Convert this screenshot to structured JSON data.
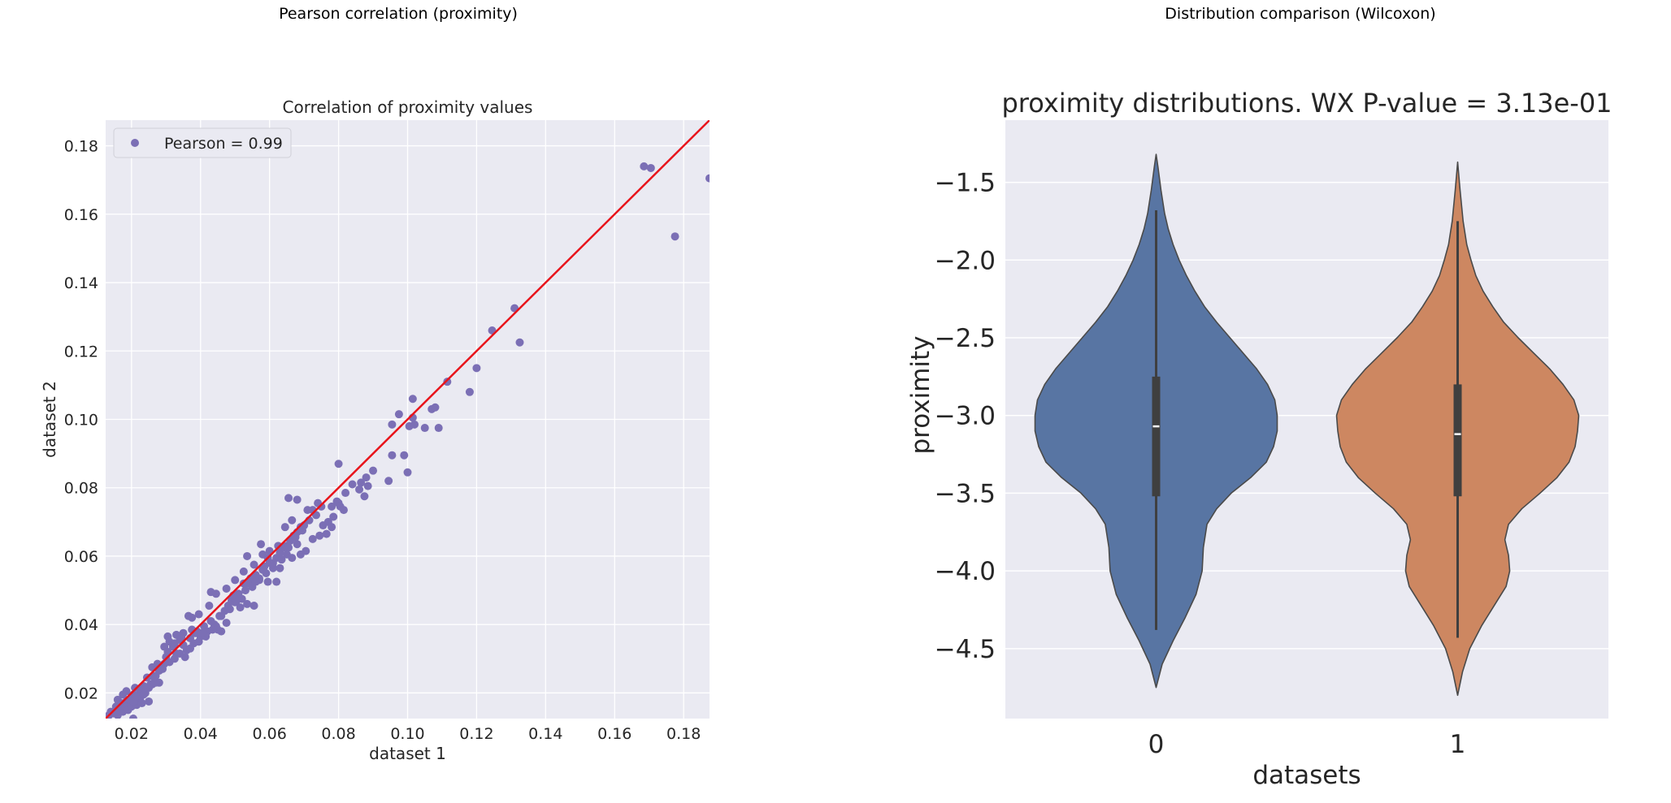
{
  "panels": {
    "left_title": "Pearson correlation (proximity)",
    "right_title": "Distribution comparison (Wilcoxon)"
  },
  "chart_data": [
    {
      "type": "scatter",
      "title": "Correlation of proximity values",
      "xlabel": "dataset 1",
      "ylabel": "dataset 2",
      "xlim": [
        0.0125,
        0.1875
      ],
      "ylim": [
        0.0125,
        0.1875
      ],
      "xticks": [
        "0.02",
        "0.04",
        "0.06",
        "0.08",
        "0.10",
        "0.12",
        "0.14",
        "0.16",
        "0.18"
      ],
      "yticks": [
        "0.02",
        "0.04",
        "0.06",
        "0.08",
        "0.10",
        "0.12",
        "0.14",
        "0.16",
        "0.18"
      ],
      "legend": {
        "label": "Pearson = 0.99",
        "placement": "top-left"
      },
      "grid": true,
      "colors": {
        "points": "#7b6fb5",
        "fit_line": "#e8141b",
        "background": "#eaeaf2",
        "grid": "#ffffff"
      },
      "fit_line": {
        "x": [
          0.0125,
          0.1875
        ],
        "y": [
          0.0125,
          0.1875
        ]
      },
      "points": [
        [
          0.0135,
          0.0135
        ],
        [
          0.014,
          0.0145
        ],
        [
          0.015,
          0.014
        ],
        [
          0.0155,
          0.016
        ],
        [
          0.016,
          0.0135
        ],
        [
          0.0165,
          0.0155
        ],
        [
          0.017,
          0.017
        ],
        [
          0.0175,
          0.0145
        ],
        [
          0.018,
          0.016
        ],
        [
          0.0185,
          0.0175
        ],
        [
          0.019,
          0.015
        ],
        [
          0.0195,
          0.018
        ],
        [
          0.02,
          0.016
        ],
        [
          0.0205,
          0.0195
        ],
        [
          0.021,
          0.0175
        ],
        [
          0.0215,
          0.0165
        ],
        [
          0.022,
          0.019
        ],
        [
          0.0225,
          0.0185
        ],
        [
          0.023,
          0.021
        ],
        [
          0.024,
          0.02
        ],
        [
          0.025,
          0.0215
        ],
        [
          0.026,
          0.0225
        ],
        [
          0.027,
          0.025
        ],
        [
          0.028,
          0.023
        ],
        [
          0.0185,
          0.0205
        ],
        [
          0.021,
          0.0215
        ],
        [
          0.016,
          0.018
        ],
        [
          0.0175,
          0.0195
        ],
        [
          0.0205,
          0.0125
        ],
        [
          0.023,
          0.017
        ],
        [
          0.025,
          0.0175
        ],
        [
          0.0245,
          0.0245
        ],
        [
          0.026,
          0.0275
        ],
        [
          0.0275,
          0.0285
        ],
        [
          0.029,
          0.027
        ],
        [
          0.03,
          0.0305
        ],
        [
          0.031,
          0.029
        ],
        [
          0.0305,
          0.0365
        ],
        [
          0.032,
          0.0335
        ],
        [
          0.033,
          0.0315
        ],
        [
          0.034,
          0.0355
        ],
        [
          0.035,
          0.034
        ],
        [
          0.036,
          0.0325
        ],
        [
          0.037,
          0.036
        ],
        [
          0.038,
          0.0345
        ],
        [
          0.0385,
          0.0375
        ],
        [
          0.039,
          0.038
        ],
        [
          0.04,
          0.0365
        ],
        [
          0.041,
          0.0395
        ],
        [
          0.042,
          0.038
        ],
        [
          0.043,
          0.041
        ],
        [
          0.044,
          0.04
        ],
        [
          0.045,
          0.0385
        ],
        [
          0.046,
          0.0425
        ],
        [
          0.047,
          0.044
        ],
        [
          0.048,
          0.0455
        ],
        [
          0.049,
          0.047
        ],
        [
          0.05,
          0.0465
        ],
        [
          0.051,
          0.049
        ],
        [
          0.052,
          0.0475
        ],
        [
          0.053,
          0.05
        ],
        [
          0.054,
          0.052
        ],
        [
          0.055,
          0.051
        ],
        [
          0.056,
          0.0545
        ],
        [
          0.057,
          0.053
        ],
        [
          0.058,
          0.056
        ],
        [
          0.059,
          0.055
        ],
        [
          0.06,
          0.058
        ],
        [
          0.061,
          0.0565
        ],
        [
          0.062,
          0.0595
        ],
        [
          0.063,
          0.061
        ],
        [
          0.064,
          0.0625
        ],
        [
          0.065,
          0.063
        ],
        [
          0.066,
          0.0645
        ],
        [
          0.067,
          0.066
        ],
        [
          0.068,
          0.067
        ],
        [
          0.069,
          0.0685
        ],
        [
          0.07,
          0.069
        ],
        [
          0.0715,
          0.0705
        ],
        [
          0.0735,
          0.072
        ],
        [
          0.075,
          0.0745
        ],
        [
          0.077,
          0.07
        ],
        [
          0.078,
          0.0745
        ],
        [
          0.0795,
          0.076
        ],
        [
          0.08,
          0.0755
        ],
        [
          0.0805,
          0.0745
        ],
        [
          0.082,
          0.0785
        ],
        [
          0.084,
          0.081
        ],
        [
          0.086,
          0.0795
        ],
        [
          0.088,
          0.083
        ],
        [
          0.0875,
          0.0775
        ],
        [
          0.09,
          0.085
        ],
        [
          0.08,
          0.087
        ],
        [
          0.068,
          0.0765
        ],
        [
          0.0655,
          0.077
        ],
        [
          0.074,
          0.0755
        ],
        [
          0.0945,
          0.082
        ],
        [
          0.0955,
          0.0895
        ],
        [
          0.099,
          0.0895
        ],
        [
          0.1,
          0.0845
        ],
        [
          0.1005,
          0.098
        ],
        [
          0.102,
          0.0985
        ],
        [
          0.105,
          0.0975
        ],
        [
          0.107,
          0.103
        ],
        [
          0.108,
          0.1035
        ],
        [
          0.109,
          0.0975
        ],
        [
          0.0955,
          0.0985
        ],
        [
          0.0975,
          0.1015
        ],
        [
          0.1015,
          0.106
        ],
        [
          0.1015,
          0.1005
        ],
        [
          0.1115,
          0.111
        ],
        [
          0.118,
          0.108
        ],
        [
          0.12,
          0.115
        ],
        [
          0.1245,
          0.126
        ],
        [
          0.131,
          0.1325
        ],
        [
          0.1325,
          0.1225
        ],
        [
          0.1685,
          0.174
        ],
        [
          0.1705,
          0.1735
        ],
        [
          0.1775,
          0.1535
        ],
        [
          0.1875,
          0.1705
        ],
        [
          0.0295,
          0.0335
        ],
        [
          0.031,
          0.035
        ],
        [
          0.033,
          0.037
        ],
        [
          0.035,
          0.0375
        ],
        [
          0.0365,
          0.0425
        ],
        [
          0.0375,
          0.042
        ],
        [
          0.0395,
          0.043
        ],
        [
          0.0425,
          0.0455
        ],
        [
          0.043,
          0.0495
        ],
        [
          0.0445,
          0.049
        ],
        [
          0.0475,
          0.0505
        ],
        [
          0.05,
          0.053
        ],
        [
          0.0525,
          0.0555
        ],
        [
          0.0535,
          0.06
        ],
        [
          0.0555,
          0.0575
        ],
        [
          0.058,
          0.0605
        ],
        [
          0.06,
          0.0615
        ],
        [
          0.0625,
          0.063
        ],
        [
          0.0645,
          0.0685
        ],
        [
          0.0665,
          0.0705
        ],
        [
          0.071,
          0.0735
        ],
        [
          0.0725,
          0.0735
        ],
        [
          0.0575,
          0.0635
        ],
        [
          0.0595,
          0.0595
        ],
        [
          0.0515,
          0.045
        ],
        [
          0.0535,
          0.046
        ],
        [
          0.0555,
          0.0455
        ],
        [
          0.0475,
          0.0405
        ],
        [
          0.046,
          0.038
        ],
        [
          0.0445,
          0.0395
        ],
        [
          0.0415,
          0.0365
        ],
        [
          0.0395,
          0.035
        ],
        [
          0.037,
          0.033
        ],
        [
          0.0355,
          0.0305
        ],
        [
          0.034,
          0.0315
        ],
        [
          0.0325,
          0.03
        ],
        [
          0.0295,
          0.0285
        ],
        [
          0.028,
          0.0265
        ],
        [
          0.027,
          0.023
        ],
        [
          0.0255,
          0.0225
        ],
        [
          0.0235,
          0.022
        ],
        [
          0.0225,
          0.0205
        ],
        [
          0.062,
          0.0525
        ],
        [
          0.0595,
          0.0525
        ],
        [
          0.057,
          0.0535
        ],
        [
          0.063,
          0.0565
        ],
        [
          0.065,
          0.0605
        ],
        [
          0.0665,
          0.0595
        ],
        [
          0.069,
          0.0605
        ],
        [
          0.0705,
          0.0615
        ],
        [
          0.068,
          0.0635
        ],
        [
          0.0725,
          0.065
        ],
        [
          0.0745,
          0.066
        ],
        [
          0.0765,
          0.0665
        ],
        [
          0.078,
          0.0685
        ],
        [
          0.0755,
          0.069
        ],
        [
          0.0815,
          0.0735
        ],
        [
          0.0785,
          0.0715
        ],
        [
          0.0865,
          0.0815
        ],
        [
          0.0885,
          0.0805
        ],
        [
          0.0205,
          0.0175
        ],
        [
          0.0215,
          0.019
        ],
        [
          0.0235,
          0.0195
        ],
        [
          0.0265,
          0.0245
        ],
        [
          0.0285,
          0.027
        ],
        [
          0.0305,
          0.032
        ],
        [
          0.0325,
          0.0345
        ],
        [
          0.0345,
          0.036
        ],
        [
          0.0375,
          0.0385
        ],
        [
          0.0405,
          0.0375
        ],
        [
          0.0435,
          0.0385
        ],
        [
          0.0455,
          0.0425
        ],
        [
          0.0485,
          0.0445
        ],
        [
          0.0505,
          0.047
        ],
        [
          0.0495,
          0.0485
        ],
        [
          0.0525,
          0.052
        ],
        [
          0.0545,
          0.0535
        ],
        [
          0.056,
          0.0525
        ],
        [
          0.0585,
          0.057
        ],
        [
          0.061,
          0.058
        ],
        [
          0.0635,
          0.059
        ],
        [
          0.0655,
          0.0625
        ],
        [
          0.0675,
          0.0655
        ],
        [
          0.0695,
          0.0675
        ]
      ]
    },
    {
      "type": "violin",
      "title": "proximity distributions. WX P-value = 3.13e-01",
      "xlabel": "datasets",
      "ylabel": "proximity",
      "categories": [
        "0",
        "1"
      ],
      "ylim": [
        -4.95,
        -1.1
      ],
      "yticks": [
        "−1.5",
        "−2.0",
        "−2.5",
        "−3.0",
        "−3.5",
        "−4.0",
        "−4.5"
      ],
      "grid": true,
      "colors": {
        "violin_0": "#5875a3",
        "violin_1": "#cd8761",
        "background": "#eaeaf2",
        "box": "#3f3f3f"
      },
      "series": [
        {
          "category": "0",
          "min": -4.75,
          "max": -1.32,
          "whisker_low": -4.38,
          "whisker_high": -1.68,
          "q1": -3.52,
          "median": -3.07,
          "q3": -2.75,
          "density": [
            [
              -4.75,
              0.0
            ],
            [
              -4.6,
              0.05
            ],
            [
              -4.45,
              0.14
            ],
            [
              -4.3,
              0.24
            ],
            [
              -4.15,
              0.33
            ],
            [
              -4.0,
              0.38
            ],
            [
              -3.85,
              0.39
            ],
            [
              -3.7,
              0.42
            ],
            [
              -3.6,
              0.5
            ],
            [
              -3.5,
              0.62
            ],
            [
              -3.4,
              0.78
            ],
            [
              -3.3,
              0.91
            ],
            [
              -3.2,
              0.97
            ],
            [
              -3.1,
              1.0
            ],
            [
              -3.0,
              1.0
            ],
            [
              -2.9,
              0.98
            ],
            [
              -2.8,
              0.92
            ],
            [
              -2.7,
              0.83
            ],
            [
              -2.6,
              0.72
            ],
            [
              -2.5,
              0.61
            ],
            [
              -2.4,
              0.5
            ],
            [
              -2.3,
              0.4
            ],
            [
              -2.2,
              0.32
            ],
            [
              -2.1,
              0.25
            ],
            [
              -2.0,
              0.19
            ],
            [
              -1.9,
              0.14
            ],
            [
              -1.8,
              0.1
            ],
            [
              -1.7,
              0.07
            ],
            [
              -1.55,
              0.04
            ],
            [
              -1.4,
              0.015
            ],
            [
              -1.32,
              0.0
            ]
          ]
        },
        {
          "category": "1",
          "min": -4.8,
          "max": -1.37,
          "whisker_low": -4.43,
          "whisker_high": -1.75,
          "q1": -3.52,
          "median": -3.12,
          "q3": -2.8,
          "density": [
            [
              -4.8,
              0.0
            ],
            [
              -4.65,
              0.04
            ],
            [
              -4.5,
              0.1
            ],
            [
              -4.35,
              0.2
            ],
            [
              -4.2,
              0.32
            ],
            [
              -4.1,
              0.4
            ],
            [
              -4.0,
              0.43
            ],
            [
              -3.9,
              0.42
            ],
            [
              -3.8,
              0.39
            ],
            [
              -3.7,
              0.42
            ],
            [
              -3.6,
              0.53
            ],
            [
              -3.5,
              0.68
            ],
            [
              -3.4,
              0.82
            ],
            [
              -3.3,
              0.92
            ],
            [
              -3.2,
              0.97
            ],
            [
              -3.1,
              0.99
            ],
            [
              -3.0,
              1.0
            ],
            [
              -2.9,
              0.96
            ],
            [
              -2.8,
              0.87
            ],
            [
              -2.7,
              0.76
            ],
            [
              -2.6,
              0.63
            ],
            [
              -2.5,
              0.5
            ],
            [
              -2.4,
              0.38
            ],
            [
              -2.3,
              0.29
            ],
            [
              -2.2,
              0.21
            ],
            [
              -2.1,
              0.15
            ],
            [
              -2.0,
              0.11
            ],
            [
              -1.9,
              0.075
            ],
            [
              -1.75,
              0.045
            ],
            [
              -1.55,
              0.02
            ],
            [
              -1.37,
              0.0
            ]
          ]
        }
      ]
    }
  ]
}
